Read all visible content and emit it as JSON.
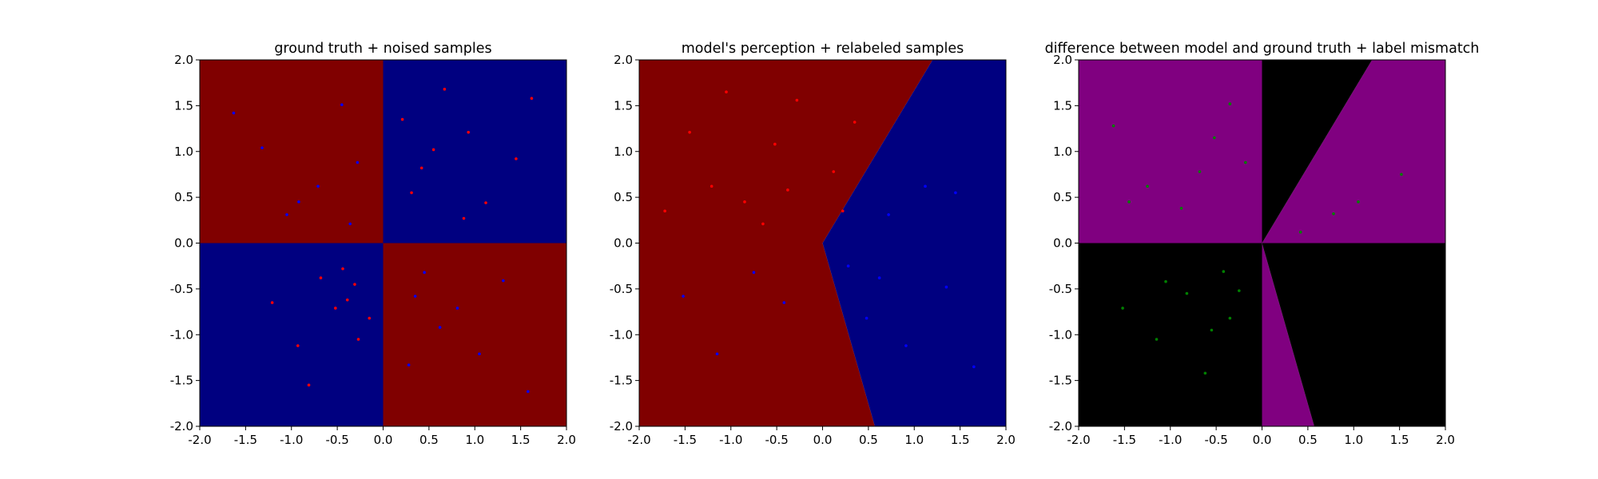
{
  "figure": {
    "background": "#ffffff"
  },
  "chart_data": [
    {
      "type": "scatter",
      "title": "ground truth + noised samples",
      "xlim": [
        -2.0,
        2.0
      ],
      "ylim": [
        -2.0,
        2.0
      ],
      "x_ticks": [
        "-2.0",
        "-1.5",
        "-1.0",
        "-0.5",
        "0.0",
        "0.5",
        "1.0",
        "1.5",
        "2.0"
      ],
      "y_ticks": [
        "-2.0",
        "-1.5",
        "-1.0",
        "-0.5",
        "0.0",
        "0.5",
        "1.0",
        "1.5",
        "2.0"
      ],
      "regions": [
        {
          "color": "#800000",
          "polygon": [
            [
              -2,
              0
            ],
            [
              0,
              0
            ],
            [
              0,
              2
            ],
            [
              -2,
              2
            ]
          ]
        },
        {
          "color": "#000080",
          "polygon": [
            [
              0,
              0
            ],
            [
              2,
              0
            ],
            [
              2,
              2
            ],
            [
              0,
              2
            ]
          ]
        },
        {
          "color": "#000080",
          "polygon": [
            [
              -2,
              -2
            ],
            [
              0,
              -2
            ],
            [
              0,
              0
            ],
            [
              -2,
              0
            ]
          ]
        },
        {
          "color": "#800000",
          "polygon": [
            [
              0,
              -2
            ],
            [
              2,
              -2
            ],
            [
              2,
              0
            ],
            [
              0,
              0
            ]
          ]
        }
      ],
      "series": [
        {
          "color": "#ff0000",
          "values": [
            [
              0.42,
              0.82
            ],
            [
              0.93,
              1.21
            ],
            [
              0.31,
              0.55
            ],
            [
              1.12,
              0.44
            ],
            [
              0.67,
              1.68
            ],
            [
              1.45,
              0.92
            ],
            [
              0.21,
              1.35
            ],
            [
              0.88,
              0.27
            ],
            [
              1.62,
              1.58
            ],
            [
              0.55,
              1.02
            ],
            [
              -0.52,
              -0.71
            ],
            [
              -0.31,
              -0.45
            ],
            [
              -0.93,
              -1.12
            ],
            [
              -0.44,
              -0.28
            ],
            [
              -1.21,
              -0.65
            ],
            [
              -0.27,
              -1.05
            ],
            [
              -0.68,
              -0.38
            ],
            [
              -0.15,
              -0.82
            ],
            [
              -0.81,
              -1.55
            ],
            [
              -0.39,
              -0.62
            ]
          ]
        },
        {
          "color": "#0000ff",
          "values": [
            [
              -0.71,
              0.62
            ],
            [
              -1.32,
              1.04
            ],
            [
              -0.45,
              1.51
            ],
            [
              -1.05,
              0.31
            ],
            [
              -0.28,
              0.88
            ],
            [
              -1.63,
              1.42
            ],
            [
              -0.92,
              0.45
            ],
            [
              -0.36,
              0.21
            ],
            [
              0.62,
              -0.92
            ],
            [
              1.31,
              -0.41
            ],
            [
              0.28,
              -1.33
            ],
            [
              1.05,
              -1.21
            ],
            [
              0.45,
              -0.32
            ],
            [
              1.58,
              -1.62
            ],
            [
              0.81,
              -0.71
            ],
            [
              0.35,
              -0.58
            ]
          ]
        }
      ]
    },
    {
      "type": "scatter",
      "title": "model's perception + relabeled samples",
      "xlim": [
        -2.0,
        2.0
      ],
      "ylim": [
        -2.0,
        2.0
      ],
      "x_ticks": [
        "-2.0",
        "-1.5",
        "-1.0",
        "-0.5",
        "0.0",
        "0.5",
        "1.0",
        "1.5",
        "2.0"
      ],
      "y_ticks": [
        "-2.0",
        "-1.5",
        "-1.0",
        "-0.5",
        "0.0",
        "0.5",
        "1.0",
        "1.5",
        "2.0"
      ],
      "regions": [
        {
          "color": "#800000",
          "polygon": [
            [
              -2,
              -2
            ],
            [
              0.57,
              -2
            ],
            [
              0,
              0
            ],
            [
              1.2,
              2
            ],
            [
              -2,
              2
            ]
          ]
        },
        {
          "color": "#000080",
          "polygon": [
            [
              0.57,
              -2
            ],
            [
              2,
              -2
            ],
            [
              2,
              2
            ],
            [
              1.2,
              2
            ],
            [
              0,
              0
            ]
          ]
        }
      ],
      "series": [
        {
          "color": "#ff0000",
          "values": [
            [
              -1.21,
              0.62
            ],
            [
              -0.52,
              1.08
            ],
            [
              -0.85,
              0.45
            ],
            [
              -0.28,
              1.56
            ],
            [
              -1.45,
              1.21
            ],
            [
              0.12,
              0.78
            ],
            [
              -0.65,
              0.21
            ],
            [
              -1.72,
              0.35
            ],
            [
              0.35,
              1.32
            ],
            [
              -0.38,
              0.58
            ],
            [
              -1.05,
              1.65
            ],
            [
              0.22,
              0.35
            ]
          ]
        },
        {
          "color": "#0000ff",
          "values": [
            [
              0.72,
              0.31
            ],
            [
              1.35,
              -0.48
            ],
            [
              0.48,
              -0.82
            ],
            [
              1.12,
              0.62
            ],
            [
              1.65,
              -1.35
            ],
            [
              0.91,
              -1.12
            ],
            [
              0.62,
              -0.38
            ],
            [
              -0.42,
              -0.65
            ],
            [
              -1.15,
              -1.21
            ],
            [
              -0.75,
              -0.32
            ],
            [
              -1.52,
              -0.58
            ],
            [
              0.28,
              -0.25
            ],
            [
              1.45,
              0.55
            ]
          ]
        }
      ]
    },
    {
      "type": "scatter",
      "title": "difference between model and ground truth + label mismatch",
      "xlim": [
        -2.0,
        2.0
      ],
      "ylim": [
        -2.0,
        2.0
      ],
      "x_ticks": [
        "-2.0",
        "-1.5",
        "-1.0",
        "-0.5",
        "0.0",
        "0.5",
        "1.0",
        "1.5",
        "2.0"
      ],
      "y_ticks": [
        "-2.0",
        "-1.5",
        "-1.0",
        "-0.5",
        "0.0",
        "0.5",
        "1.0",
        "1.5",
        "2.0"
      ],
      "regions": [
        {
          "color": "#800080",
          "polygon": [
            [
              -2,
              0
            ],
            [
              0,
              0
            ],
            [
              0,
              2
            ],
            [
              -2,
              2
            ]
          ]
        },
        {
          "color": "#800080",
          "polygon": [
            [
              0,
              0
            ],
            [
              1.2,
              2
            ],
            [
              2,
              2
            ],
            [
              2,
              0
            ]
          ]
        },
        {
          "color": "#000000",
          "polygon": [
            [
              0,
              0
            ],
            [
              0,
              2
            ],
            [
              1.2,
              2
            ]
          ]
        },
        {
          "color": "#000000",
          "polygon": [
            [
              -2,
              -2
            ],
            [
              0,
              -2
            ],
            [
              0,
              0
            ],
            [
              -2,
              0
            ]
          ]
        },
        {
          "color": "#800080",
          "polygon": [
            [
              0,
              0
            ],
            [
              0,
              -2
            ],
            [
              0.57,
              -2
            ]
          ]
        },
        {
          "color": "#000000",
          "polygon": [
            [
              0,
              0
            ],
            [
              0.57,
              -2
            ],
            [
              2,
              -2
            ],
            [
              2,
              0
            ]
          ]
        }
      ],
      "series": [
        {
          "color": "#008000",
          "values": [
            [
              -1.25,
              0.62
            ],
            [
              -0.52,
              1.15
            ],
            [
              -0.88,
              0.38
            ],
            [
              -0.35,
              1.52
            ],
            [
              -1.62,
              1.28
            ],
            [
              -0.68,
              0.78
            ],
            [
              -1.45,
              0.45
            ],
            [
              -0.18,
              0.88
            ],
            [
              0.42,
              0.12
            ],
            [
              1.05,
              0.45
            ],
            [
              1.52,
              0.75
            ],
            [
              0.78,
              0.32
            ],
            [
              -0.82,
              -0.55
            ],
            [
              -0.42,
              -0.31
            ],
            [
              -1.15,
              -1.05
            ],
            [
              -0.35,
              -0.82
            ],
            [
              -1.52,
              -0.71
            ],
            [
              -0.62,
              -1.42
            ],
            [
              -0.25,
              -0.52
            ],
            [
              -1.05,
              -0.42
            ],
            [
              -0.55,
              -0.95
            ]
          ]
        }
      ]
    }
  ]
}
